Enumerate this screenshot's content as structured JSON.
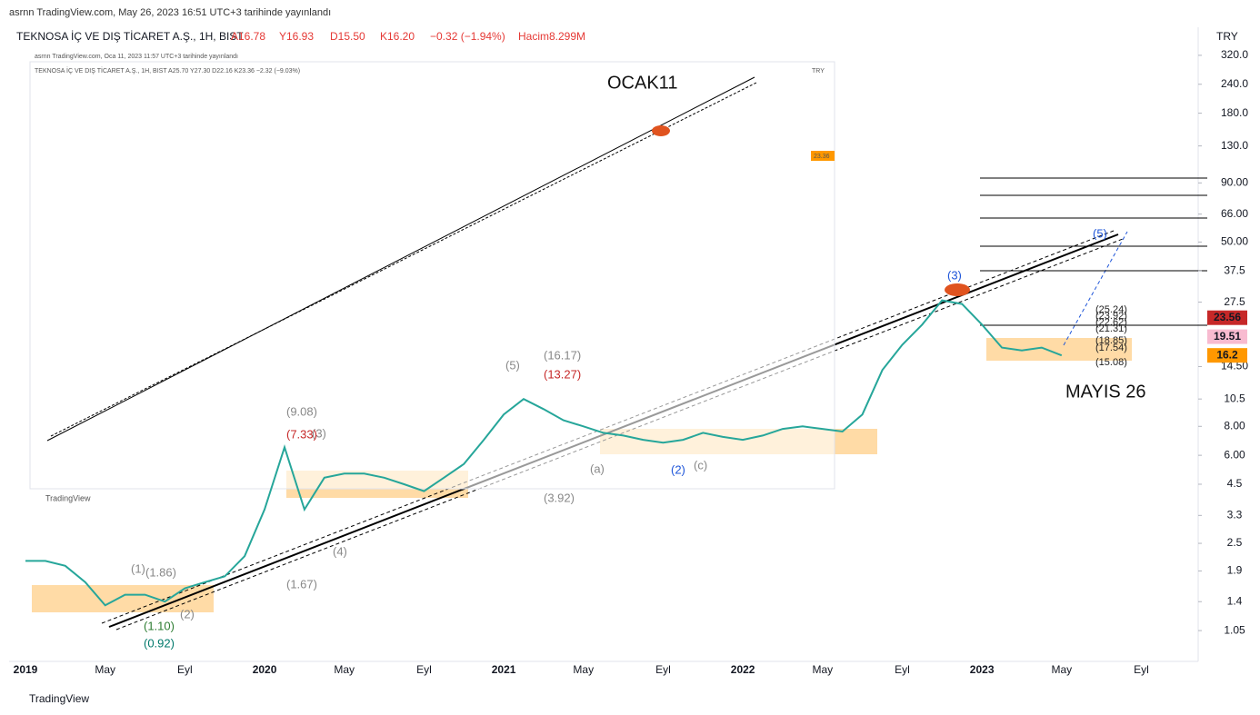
{
  "header": {
    "published": "asrnn TradingView.com, May 26, 2023 16:51 UTC+3 tarihinde yayınlandı",
    "symbol": "TEKNOSA İÇ VE DIŞ TİCARET A.Ş., 1H, BIST",
    "open": "A16.78",
    "high": "Y16.93",
    "low": "D15.50",
    "close": "K16.20",
    "change": "−0.32 (−1.94%)",
    "volume": "Hacim8.299M"
  },
  "inset": {
    "published": "asrnn TradingView.com, Oca 11, 2023 11:57 UTC+3 tarihinde yayınlandı",
    "symbol": "TEKNOSA İÇ VE DIŞ TİCARET A.Ş., 1H, BIST A25.70 Y27.30 D22.16 K23.36 −2.32 (−9.03%)",
    "currency": "TRY",
    "last": "23.36",
    "logo": "TradingView"
  },
  "chart_data": {
    "type": "line",
    "currency": "TRY",
    "log_scale": true,
    "categories": [
      "2019",
      null,
      null,
      null,
      "May",
      null,
      null,
      null,
      "Eyl",
      null,
      null,
      null,
      "2020",
      null,
      null,
      null,
      "May",
      null,
      null,
      null,
      "Eyl",
      null,
      null,
      null,
      "2021",
      null,
      null,
      null,
      "May",
      null,
      null,
      null,
      "Eyl",
      null,
      null,
      null,
      "2022",
      null,
      null,
      null,
      "May",
      null,
      null,
      null,
      "Eyl",
      null,
      null,
      null,
      "2023",
      null,
      null,
      null,
      "May",
      null,
      null,
      null,
      "Eyl"
    ],
    "series": [
      {
        "name": "TEKNOSA",
        "color": "#26a69a",
        "values": [
          2.1,
          2.1,
          2.0,
          1.7,
          1.35,
          1.5,
          1.5,
          1.4,
          1.6,
          1.7,
          1.8,
          2.2,
          3.5,
          6.5,
          3.5,
          4.8,
          5.0,
          5.0,
          4.8,
          4.5,
          4.2,
          4.8,
          5.5,
          7.0,
          9.0,
          10.5,
          9.5,
          8.5,
          8.0,
          7.5,
          7.3,
          7.0,
          6.8,
          7.0,
          7.5,
          7.2,
          7.0,
          7.3,
          7.8,
          8.0,
          7.8,
          7.6,
          9.0,
          14,
          18,
          22,
          28,
          27,
          22,
          17.5,
          17,
          17.5,
          16.2,
          null,
          null,
          null,
          null
        ]
      }
    ],
    "ylim": [
      0.773,
      423
    ],
    "yticks": [
      {
        "value": 320,
        "label": "320.0"
      },
      {
        "value": 240,
        "label": "240.0"
      },
      {
        "value": 180,
        "label": "180.0"
      },
      {
        "value": 130,
        "label": "130.0"
      },
      {
        "value": 90,
        "label": "90.00"
      },
      {
        "value": 66,
        "label": "66.00"
      },
      {
        "value": 50,
        "label": "50.00"
      },
      37.5,
      27.5,
      {
        "value": 14.5,
        "label": "14.50"
      },
      10.5,
      {
        "value": 8,
        "label": "8.00"
      },
      {
        "value": 6,
        "label": "6.00"
      },
      4.5,
      3.3,
      2.5,
      1.9,
      1.4,
      1.05
    ],
    "price_labels": [
      {
        "value": 23.56,
        "color": "#c62828"
      },
      {
        "value": 19.51,
        "color": "#f8bbd0"
      },
      {
        "value": 16.2,
        "color": "#ff9800"
      }
    ],
    "annotations": {
      "ocak": "OCAK11",
      "mayis": "MAYIS 26",
      "w1": "(1)",
      "w2": "(2)",
      "w3": "(3)",
      "w4": "(4)",
      "w5": "(5)",
      "wa": "(a)",
      "wc": "(c)",
      "w5b": "(5)",
      "w3b": "(3)",
      "w2b": "(2)",
      "f1": "(25.24)",
      "f2": "(23.92)",
      "f3": "(22.62)",
      "f4": "(21.31)",
      "f5": "(18.85)",
      "f6": "(17.54)",
      "f7": "(15.08)",
      "l1": "(16.17)",
      "l2": "(13.27)",
      "l3": "(9.08)",
      "l4": "(7.33)",
      "l5": "(3.92)",
      "l6": "(1.86)",
      "l7": "(1.67)",
      "l8": "(1.10)",
      "l9": "(0.92)"
    },
    "logo": "TradingView"
  }
}
